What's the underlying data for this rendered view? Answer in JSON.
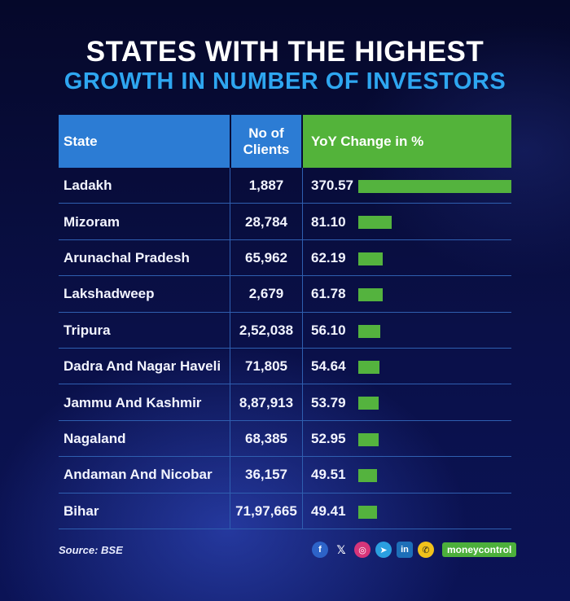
{
  "title": {
    "line1": "STATES WITH THE HIGHEST",
    "line2": "GROWTH IN NUMBER OF INVESTORS"
  },
  "colors": {
    "header_blue": "#2c7cd4",
    "header_green": "#53b33a",
    "title_accent": "#2ea6f0",
    "bar": "#54b33e"
  },
  "chart_data": {
    "type": "table",
    "title": "STATES WITH THE HIGHEST GROWTH IN NUMBER OF INVESTORS",
    "columns": [
      "State",
      "No of Clients",
      "YoY Change in %"
    ],
    "rows": [
      {
        "state": "Ladakh",
        "clients": "1,887",
        "yoy": 370.57
      },
      {
        "state": "Mizoram",
        "clients": "28,784",
        "yoy": 81.1
      },
      {
        "state": "Arunachal Pradesh",
        "clients": "65,962",
        "yoy": 62.19
      },
      {
        "state": "Lakshadweep",
        "clients": "2,679",
        "yoy": 61.78
      },
      {
        "state": "Tripura",
        "clients": "2,52,038",
        "yoy": 56.1
      },
      {
        "state": "Dadra And Nagar Haveli",
        "clients": "71,805",
        "yoy": 54.64
      },
      {
        "state": "Jammu And Kashmir",
        "clients": "8,87,913",
        "yoy": 53.79
      },
      {
        "state": "Nagaland",
        "clients": "68,385",
        "yoy": 52.95
      },
      {
        "state": "Andaman And Nicobar",
        "clients": "36,157",
        "yoy": 49.51
      },
      {
        "state": "Bihar",
        "clients": "71,97,665",
        "yoy": 49.41
      }
    ],
    "bar_max": 370.57
  },
  "source": "Source: BSE",
  "social": {
    "icons": [
      "facebook-icon",
      "x-icon",
      "instagram-icon",
      "telegram-icon",
      "linkedin-icon",
      "whatsapp-icon"
    ],
    "brand": "moneycontrol"
  }
}
